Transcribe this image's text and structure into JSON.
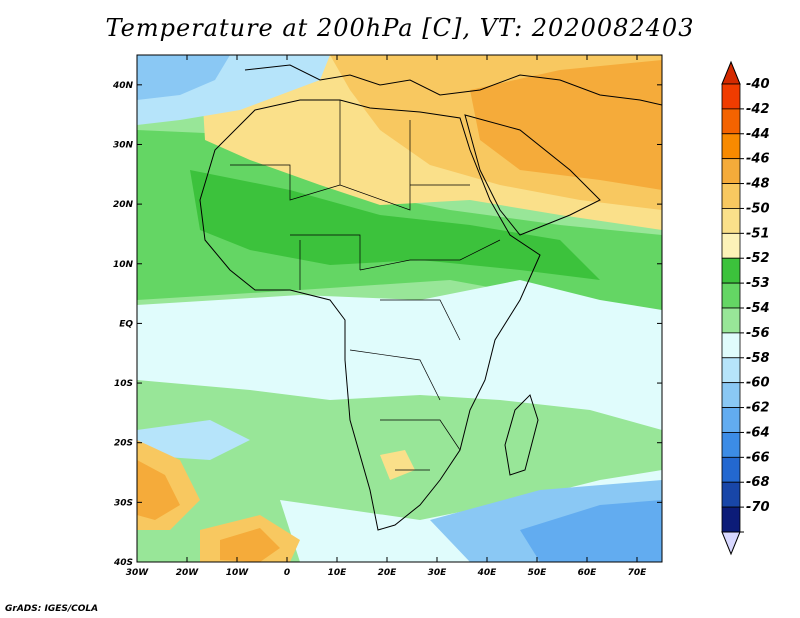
{
  "title": "Temperature at 200hPa [C], VT: 2020082403",
  "credit": "GrADS: IGES/COLA",
  "map": {
    "lon_range": [
      -30,
      75
    ],
    "lat_range": [
      -40,
      45
    ],
    "lon_ticks": [
      {
        "v": -30,
        "label": "30W"
      },
      {
        "v": -20,
        "label": "20W"
      },
      {
        "v": -10,
        "label": "10W"
      },
      {
        "v": 0,
        "label": "0"
      },
      {
        "v": 10,
        "label": "10E"
      },
      {
        "v": 20,
        "label": "20E"
      },
      {
        "v": 30,
        "label": "30E"
      },
      {
        "v": 40,
        "label": "40E"
      },
      {
        "v": 50,
        "label": "50E"
      },
      {
        "v": 60,
        "label": "60E"
      },
      {
        "v": 70,
        "label": "70E"
      }
    ],
    "lat_ticks": [
      {
        "v": 40,
        "label": "40N"
      },
      {
        "v": 30,
        "label": "30N"
      },
      {
        "v": 20,
        "label": "20N"
      },
      {
        "v": 10,
        "label": "10N"
      },
      {
        "v": 0,
        "label": "EQ"
      },
      {
        "v": -10,
        "label": "10S"
      },
      {
        "v": -20,
        "label": "20S"
      },
      {
        "v": -30,
        "label": "30S"
      },
      {
        "v": -40,
        "label": "40S"
      }
    ]
  },
  "colorbar": {
    "top_color": "#d42a00",
    "bottom_color": "#d8d8ff",
    "levels": [
      {
        "label": "-40",
        "color": "#f03c00"
      },
      {
        "label": "-42",
        "color": "#f46300"
      },
      {
        "label": "-44",
        "color": "#f88a00"
      },
      {
        "label": "-46",
        "color": "#f5ab3a"
      },
      {
        "label": "-48",
        "color": "#f8c860"
      },
      {
        "label": "-50",
        "color": "#fae08a"
      },
      {
        "label": "-51",
        "color": "#fcf2b8"
      },
      {
        "label": "-52",
        "color": "#3cc23c"
      },
      {
        "label": "-53",
        "color": "#64d664"
      },
      {
        "label": "-54",
        "color": "#98e698"
      },
      {
        "label": "-56",
        "color": "#e0fcfc"
      },
      {
        "label": "-58",
        "color": "#b6e4fa"
      },
      {
        "label": "-60",
        "color": "#8ac8f4"
      },
      {
        "label": "-62",
        "color": "#62acf0"
      },
      {
        "label": "-64",
        "color": "#3c8ce6"
      },
      {
        "label": "-66",
        "color": "#2368d0"
      },
      {
        "label": "-68",
        "color": "#1846a8"
      },
      {
        "label": "-70",
        "color": "#0c1c78"
      }
    ]
  }
}
